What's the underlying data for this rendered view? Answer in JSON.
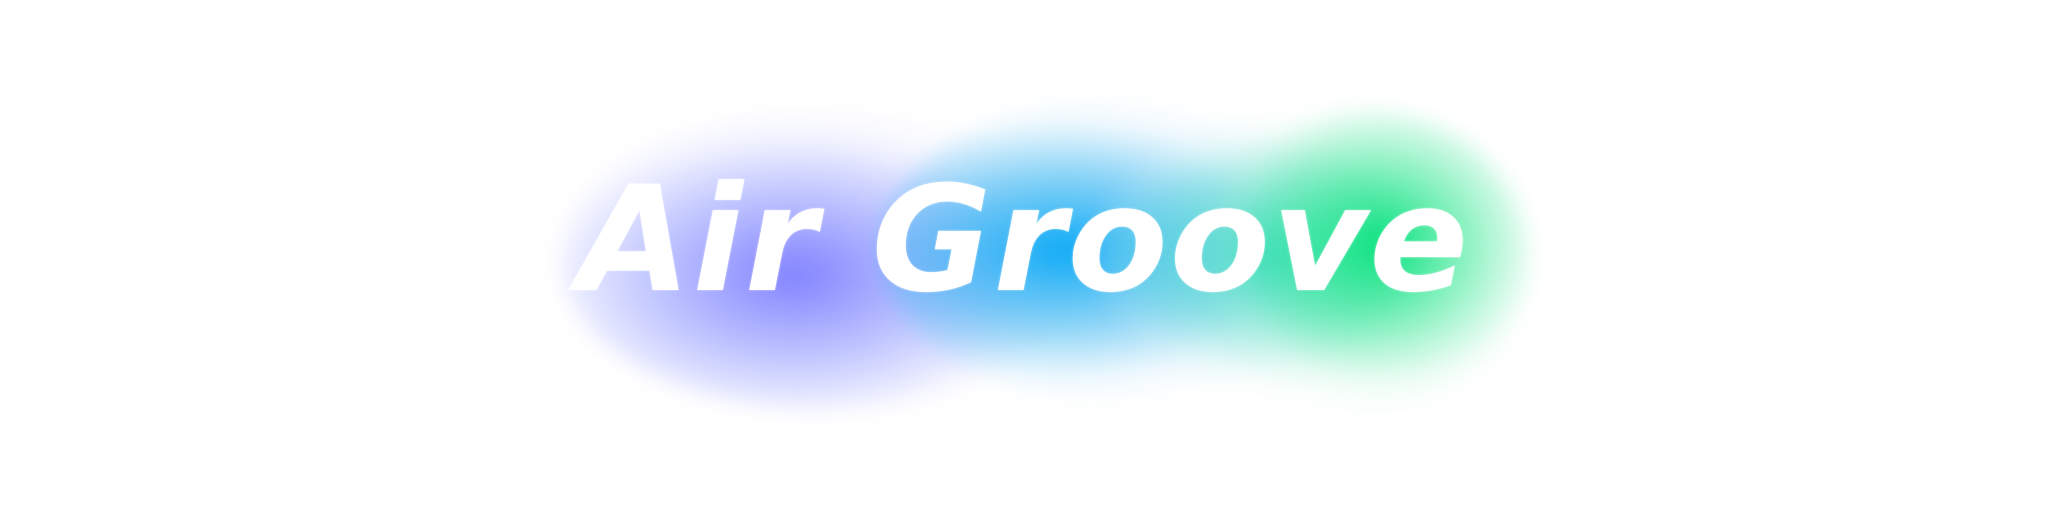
{
  "logo": {
    "text": "Air Groove"
  },
  "colors": {
    "text": "#ffffff",
    "background": "#ffffff",
    "glow_gradient": [
      "#7b7bff",
      "#00a5f5",
      "#28d7be",
      "#00e178"
    ]
  }
}
